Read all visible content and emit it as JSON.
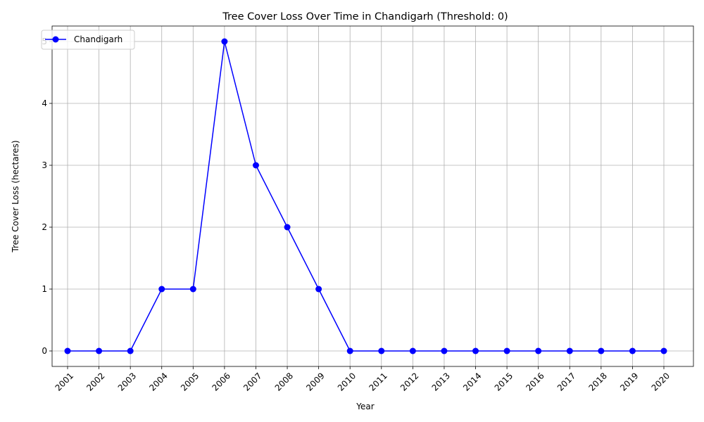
{
  "chart_data": {
    "type": "line",
    "title": "Tree Cover Loss Over Time in Chandigarh (Threshold: 0)",
    "xlabel": "Year",
    "ylabel": "Tree Cover Loss (hectares)",
    "categories": [
      "2001",
      "2002",
      "2003",
      "2004",
      "2005",
      "2006",
      "2007",
      "2008",
      "2009",
      "2010",
      "2011",
      "2012",
      "2013",
      "2014",
      "2015",
      "2016",
      "2017",
      "2018",
      "2019",
      "2020"
    ],
    "series": [
      {
        "name": "Chandigarh",
        "values": [
          0,
          0,
          0,
          1,
          1,
          5,
          3,
          2,
          1,
          0,
          0,
          0,
          0,
          0,
          0,
          0,
          0,
          0,
          0,
          0
        ],
        "color": "#0000ff",
        "marker": "circle"
      }
    ],
    "y_ticks": [
      0,
      1,
      2,
      3,
      4,
      5
    ],
    "ylim": [
      -0.25,
      5.25
    ],
    "grid": true,
    "legend_position": "top-left"
  }
}
